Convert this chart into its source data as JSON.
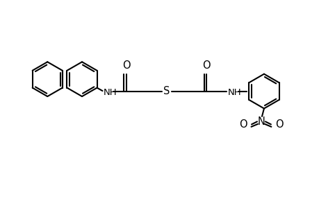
{
  "bg_color": "#ffffff",
  "line_color": "#000000",
  "lw": 1.5,
  "figsize": [
    4.6,
    3.0
  ],
  "dpi": 100,
  "xlim": [
    0,
    9.2
  ],
  "ylim": [
    0,
    6.0
  ],
  "r": 0.5,
  "r_small": 0.42,
  "font_size": 9.5
}
